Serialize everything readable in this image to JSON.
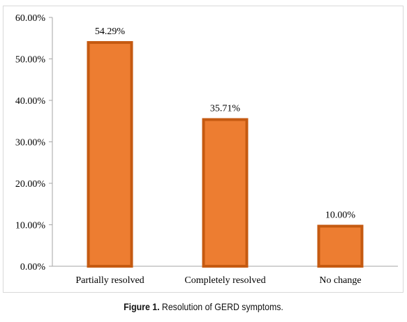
{
  "chart_data": {
    "type": "bar",
    "categories": [
      "Partially resolved",
      "Completely resolved",
      "No change"
    ],
    "values": [
      54.29,
      35.71,
      10.0
    ],
    "data_labels": [
      "54.29%",
      "35.71%",
      "10.00%"
    ],
    "ylim": [
      0,
      60
    ],
    "yticks": [
      0,
      10,
      20,
      30,
      40,
      50,
      60
    ],
    "ytick_labels": [
      "0.00%",
      "10.00%",
      "20.00%",
      "30.00%",
      "40.00%",
      "50.00%",
      "60.00%"
    ],
    "bar_fill": "#ED7D31",
    "bar_stroke": "#C55A11",
    "grid": false,
    "legend": "none"
  },
  "caption": {
    "label": "Figure 1.",
    "text": "Resolution of GERD symptoms."
  }
}
